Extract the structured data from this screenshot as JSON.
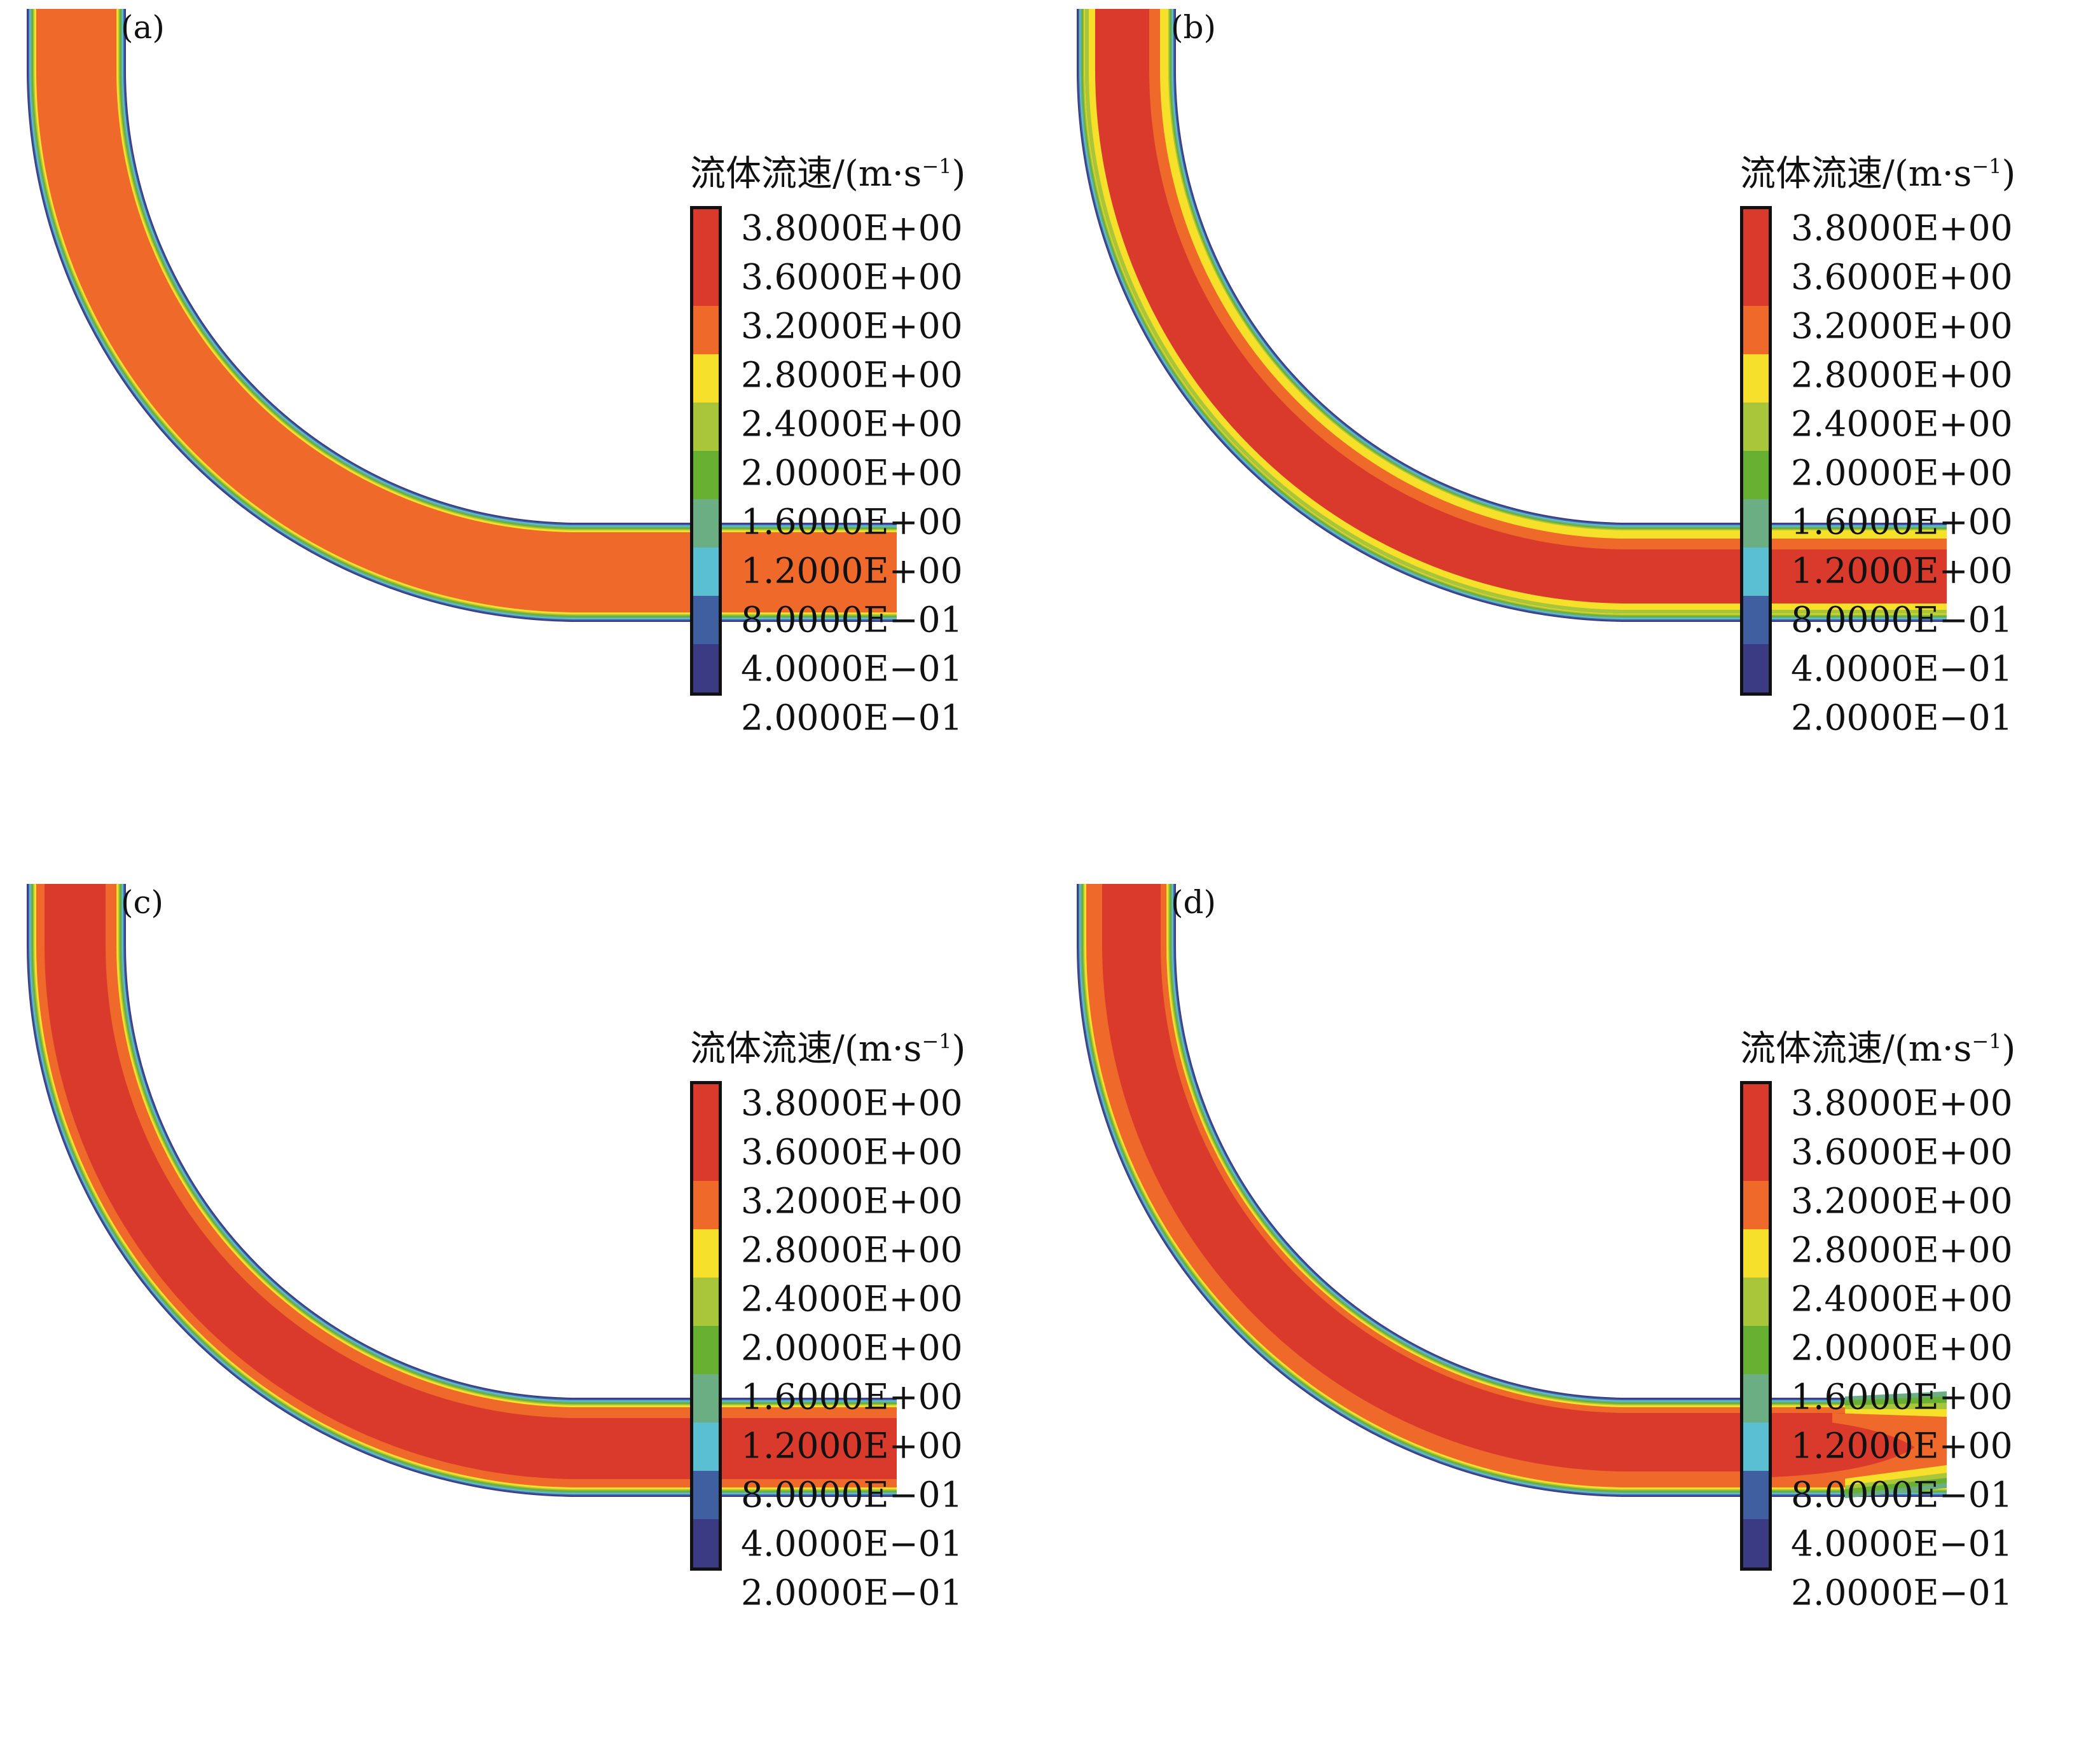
{
  "colors": [
    "#d93a2b",
    "#ef6a2a",
    "#f6e02a",
    "#a9c63a",
    "#67b032",
    "#6cae84",
    "#5abfd3",
    "#3f5fa0",
    "#3b3b84"
  ],
  "legend": {
    "title_main": "流体流速/(m·s",
    "title_sup": "−1",
    "title_close": ")",
    "ticks": [
      "3.8000E+00",
      "3.6000E+00",
      "3.2000E+00",
      "2.8000E+00",
      "2.4000E+00",
      "2.0000E+00",
      "1.6000E+00",
      "1.2000E+00",
      "8.0000E−01",
      "4.0000E−01",
      "2.0000E−01"
    ],
    "swatch_colors": [
      "#d93a2b",
      "#d93a2b",
      "#ef6a2a",
      "#f6e02a",
      "#a9c63a",
      "#67b032",
      "#6cae84",
      "#5abfd3",
      "#3f5fa0",
      "#3b3b84"
    ]
  },
  "panels": [
    {
      "label": "(a)",
      "variant": "a"
    },
    {
      "label": "(b)",
      "variant": "b"
    },
    {
      "label": "(c)",
      "variant": "c"
    },
    {
      "label": "(d)",
      "variant": "d"
    }
  ]
}
